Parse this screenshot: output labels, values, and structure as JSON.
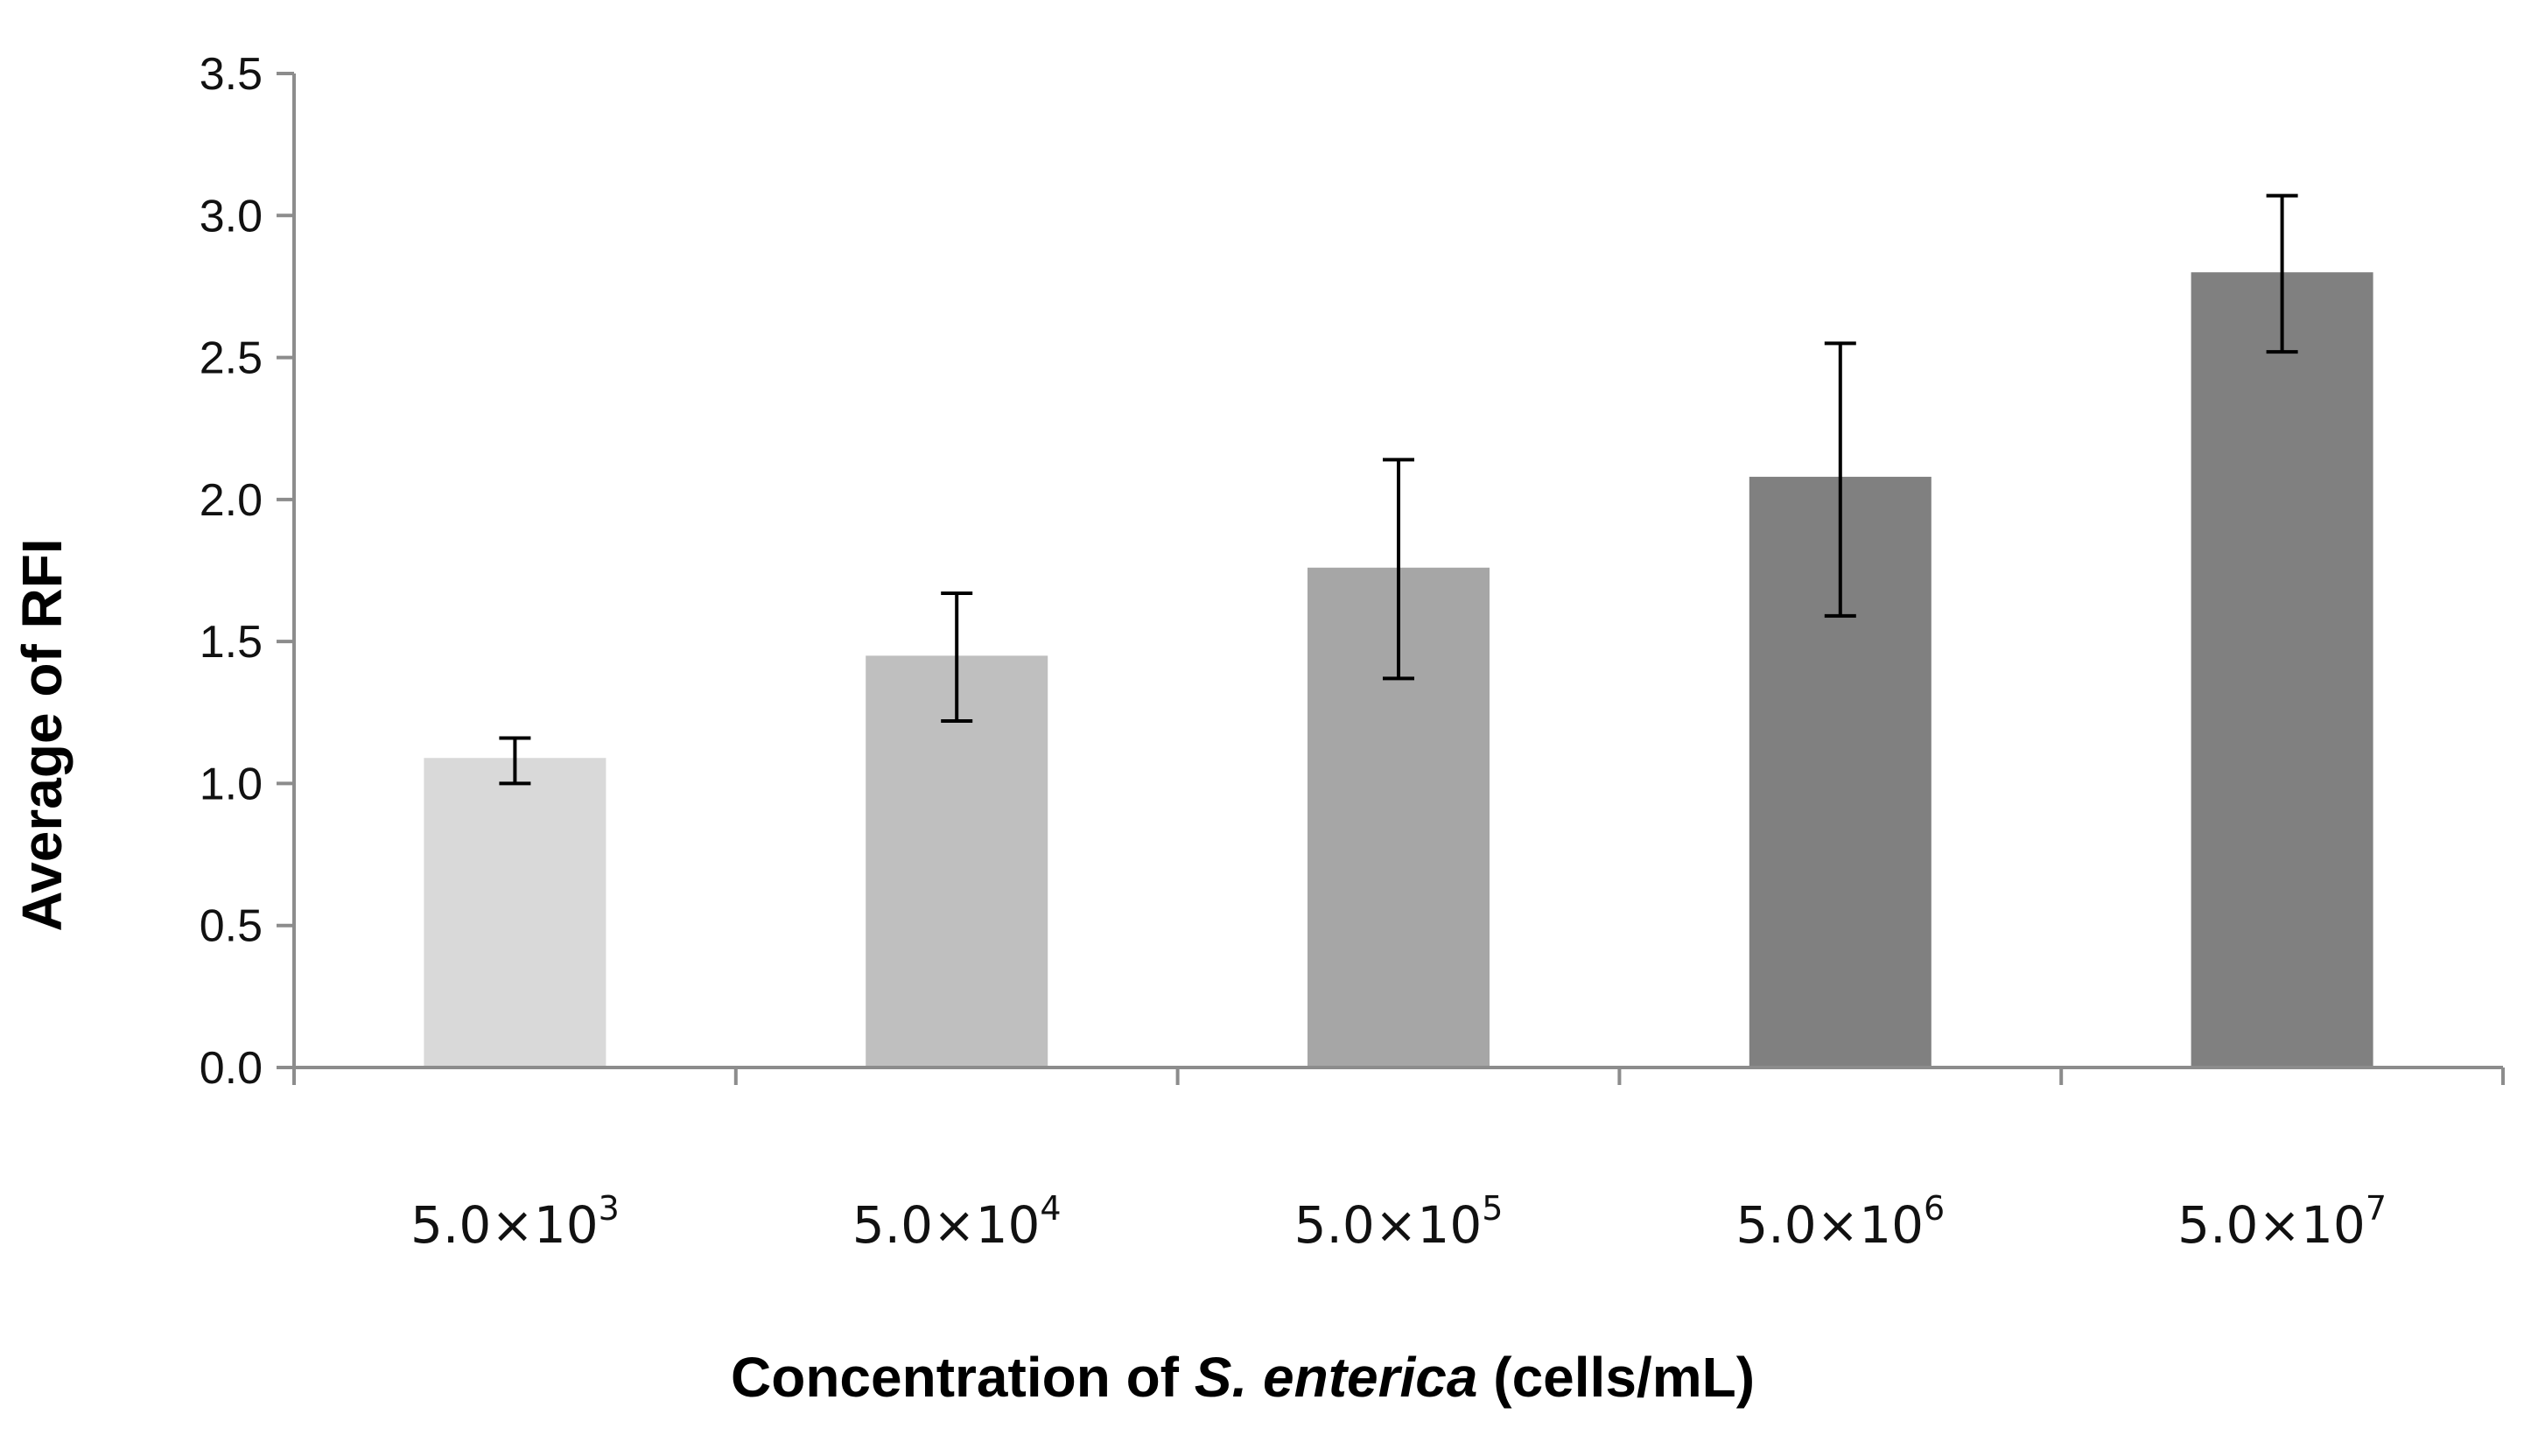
{
  "chart_data": {
    "type": "bar",
    "title": "",
    "categories": [
      {
        "base": "5.0×10",
        "exp": "3"
      },
      {
        "base": "5.0×10",
        "exp": "4"
      },
      {
        "base": "5.0×10",
        "exp": "5"
      },
      {
        "base": "5.0×10",
        "exp": "6"
      },
      {
        "base": "5.0×10",
        "exp": "7"
      }
    ],
    "values": [
      1.09,
      1.45,
      1.76,
      2.08,
      2.8
    ],
    "errors_upper": [
      1.16,
      1.67,
      2.14,
      2.55,
      3.07
    ],
    "errors_lower": [
      1.0,
      1.22,
      1.37,
      1.59,
      2.52
    ],
    "bar_colors": [
      "#d9d9d9",
      "#bfbfbf",
      "#a6a6a6",
      "#808080",
      "#808080"
    ],
    "ylim": [
      0,
      3.5
    ],
    "yticks": [
      "0.0",
      "0.5",
      "1.0",
      "1.5",
      "2.0",
      "2.5",
      "3.0",
      "3.5"
    ],
    "ylabel": "Average of RFI",
    "xlabel": {
      "prefix": "Concentration of ",
      "italic": "S. enterica",
      "suffix": " (cells/mL)"
    },
    "grid": false,
    "legend": "none",
    "axis_color": "#8c8c8c",
    "error_color": "#000000"
  }
}
